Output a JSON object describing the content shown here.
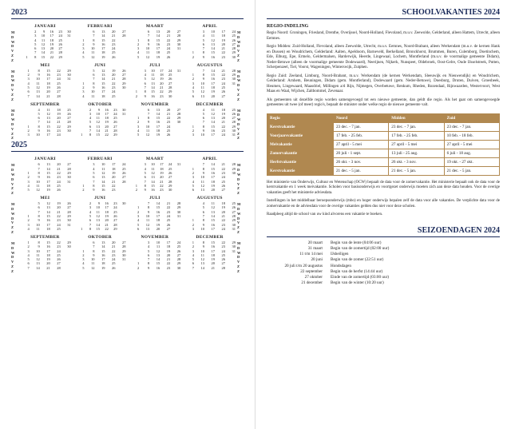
{
  "left": {
    "years": [
      "2023",
      "2025"
    ],
    "day_labels_left": [
      "WK",
      "M",
      "D",
      "W",
      "D",
      "V",
      "Z",
      "Z"
    ],
    "day_labels_right": [
      "WK",
      "M",
      "D",
      "W",
      "D",
      "V",
      "Z",
      "Z"
    ],
    "calendars": {
      "2023": [
        {
          "name": "JANUARI",
          "wk_start": 52,
          "first_dow": 6,
          "days": 31
        },
        {
          "name": "FEBRUARI",
          "wk_start": 5,
          "first_dow": 2,
          "days": 28
        },
        {
          "name": "MAART",
          "wk_start": 9,
          "first_dow": 2,
          "days": 31
        },
        {
          "name": "APRIL",
          "wk_start": 13,
          "first_dow": 5,
          "days": 30
        },
        {
          "name": "MEI",
          "wk_start": 18,
          "first_dow": 0,
          "days": 31
        },
        {
          "name": "JUNI",
          "wk_start": 22,
          "first_dow": 3,
          "days": 30
        },
        {
          "name": "JULI",
          "wk_start": 26,
          "first_dow": 5,
          "days": 31
        },
        {
          "name": "AUGUSTUS",
          "wk_start": 31,
          "first_dow": 1,
          "days": 31
        },
        {
          "name": "SEPTEMBER",
          "wk_start": 35,
          "first_dow": 4,
          "days": 30
        },
        {
          "name": "OKTOBER",
          "wk_start": 39,
          "first_dow": 6,
          "days": 31
        },
        {
          "name": "NOVEMBER",
          "wk_start": 44,
          "first_dow": 2,
          "days": 30
        },
        {
          "name": "DECEMBER",
          "wk_start": 48,
          "first_dow": 4,
          "days": 31
        }
      ],
      "2025": [
        {
          "name": "JANUARI",
          "wk_start": 1,
          "first_dow": 2,
          "days": 31
        },
        {
          "name": "FEBRUARI",
          "wk_start": 5,
          "first_dow": 5,
          "days": 28
        },
        {
          "name": "MAART",
          "wk_start": 9,
          "first_dow": 5,
          "days": 31
        },
        {
          "name": "APRIL",
          "wk_start": 14,
          "first_dow": 1,
          "days": 30
        },
        {
          "name": "MEI",
          "wk_start": 18,
          "first_dow": 3,
          "days": 31
        },
        {
          "name": "JUNI",
          "wk_start": 22,
          "first_dow": 6,
          "days": 30
        },
        {
          "name": "JULI",
          "wk_start": 27,
          "first_dow": 1,
          "days": 31
        },
        {
          "name": "AUGUSTUS",
          "wk_start": 31,
          "first_dow": 4,
          "days": 31
        },
        {
          "name": "SEPTEMBER",
          "wk_start": 36,
          "first_dow": 0,
          "days": 30
        },
        {
          "name": "OKTOBER",
          "wk_start": 40,
          "first_dow": 2,
          "days": 31
        },
        {
          "name": "NOVEMBER",
          "wk_start": 44,
          "first_dow": 5,
          "days": 30
        },
        {
          "name": "DECEMBER",
          "wk_start": 49,
          "first_dow": 0,
          "days": 31
        }
      ]
    }
  },
  "right": {
    "title": "SCHOOLVAKANTIES 2024",
    "regio_h": "REGIO-INDELING",
    "regio_noord": "Regio Noord: Groningen, Friesland, Drenthe, Overijssel, Noord-Holland, Flevoland, m.u.v. Zeewolde, Gelderland, alleen Hattem, Utrecht, alleen Eemnes.",
    "regio_midden": "Regio Midden: Zuid-Holland, Flevoland, alleen Zeewolde, Utrecht, m.u.v. Eemnes, Noord-Brabant, alleen Werkendam (m.u.v. de kernen Hank en Dussen) en Woudrichem, Gelderland: Aalten, Apeldoorn, Barneveld, Berkelland, Bronckhorst, Brummen, Buren, Culemborg, Doetinchem, Ede, Elburg, Epe, Ermelo, Geldermalsen, Harderwijk, Heerde, Lingewaal, Lochem, Montferland (m.u.v. de voormalige gemeente Didam), Neder-Betuwe (alleen de voormalige gemeente Dodewaard), Neerijnen, Nijkerk, Nunspeet, Oldebroek, Oost-Gelre, Oude IJsselstreek, Putten, Scherpenzeel, Tiel, Voorst, Wageningen, Winterswijk, Zutphen.",
    "regio_zuid": "Regio Zuid: Zeeland, Limburg, Noord-Brabant, m.u.v. Werkendam (de kernen Werkendam, Sleeuwijk en Nieuwendijk) en Woudrichem, Gelderland: Arnhem, Beuningen, Didam (gem. Montferland), Dodewaard (gem. Neder-Betuwe), Doesburg, Druten, Duiven, Groesbeek, Heumen, Lingewaard, Maasdriel, Millingen a/d Rijn, Nijmegen, Overbetuwe, Renkum, Rheden, Rozendaal, Rijnwaarden, Westervoort, West Maas en Waal, Wijchen, Zaltbommel, Zevenaar.",
    "note1": "Als gemeenten uit dezelfde regio worden samengevoegd tot een nieuwe gemeente, dan geldt die regio. Als het gaat om samengevoegde gemeentes uit twee (of meer) regio's, bepaalt de minister onder welke regio de nieuwe gemeente valt.",
    "table": {
      "header": [
        "Regio",
        "Noord",
        "Midden",
        "Zuid"
      ],
      "rows": [
        [
          "Kerstvakantie",
          "23 dec. - 7 jan.",
          "23 dec. - 7 jan.",
          "23 dec. - 7 jan."
        ],
        [
          "Voorjaarsvakantie",
          "17 feb. - 25 feb.",
          "17 feb. - 25 feb.",
          "10 feb. - 18 feb."
        ],
        [
          "Meivakantie",
          "27 april - 5 mei",
          "27 april - 5 mei",
          "27 april - 5 mei"
        ],
        [
          "Zomervakantie",
          "20 juli - 1 sept.",
          "13 juli - 25 aug.",
          "6 juli - 18 aug."
        ],
        [
          "Herfstvakantie",
          "26 okt. - 3 nov.",
          "26 okt. - 3 nov.",
          "19 okt. - 27 okt."
        ],
        [
          "Kerstvakantie",
          "21 dec. - 5 jan.",
          "21 dec. - 5 jan.",
          "21 dec. - 5 jan."
        ]
      ],
      "header_bg": "#b08850",
      "border": "#b08850"
    },
    "note2": "Het ministerie van Onderwijs, Cultuur en Wetenschap (OCW) bepaalt de data voor de zomervakantie. Het ministerie bepaalt ook de data voor de kerstvakantie en 1 week meivakantie. Scholen voor basisonderwijs en voortgezet onderwijs moeten zich aan deze data houden. Voor de overige vakanties geeft het ministerie adviesdata.",
    "note3": "Instellingen in het middelbaar beroepsonderwijs (mbo) en hoger onderwijs bepalen zelf de data voor alle vakanties. De verplichte data voor de zomervakantie en de adviesdata voor de overige vakanties gelden dus niet voor deze scholen.",
    "note4": "Raadpleeg altijd de school van uw kind alvorens een vakantie te boeken.",
    "season_title": "SEIZOENDAGEN 2024",
    "seasons": [
      [
        "20 maart",
        "Begin van de lente (04:06 uur)"
      ],
      [
        "31 maart",
        "Begin van de zomertijd (02:00 uur)"
      ],
      [
        "11 t/m 14 mei",
        "IJsheiligen"
      ],
      [
        "20 juni",
        "Begin van de zomer (22:51 uur)"
      ],
      [
        "20 juli t/m 20 augustus",
        "Hondsdagen"
      ],
      [
        "22 september",
        "Begin van de herfst (14:44 uur)"
      ],
      [
        "27 oktober",
        "Einde van de zomertijd (03:00 uur)"
      ],
      [
        "21 december",
        "Begin van de winter (10:20 uur)"
      ]
    ]
  },
  "colors": {
    "accent": "#1a2a5a",
    "table_bg": "#b08850"
  }
}
